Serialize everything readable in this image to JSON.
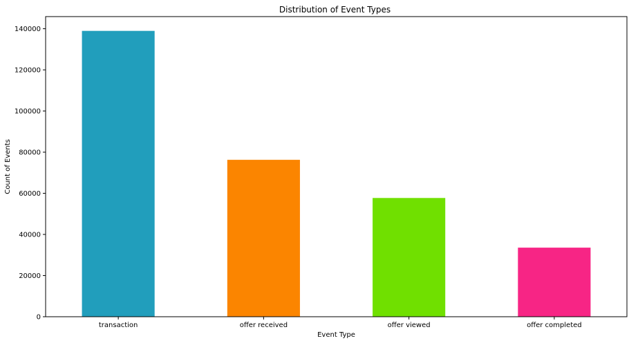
{
  "chart_data": {
    "type": "bar",
    "title": "Distribution of Event Types",
    "xlabel": "Event Type",
    "ylabel": "Count of Events",
    "categories": [
      "transaction",
      "offer received",
      "offer viewed",
      "offer completed"
    ],
    "values": [
      138953,
      76277,
      57725,
      33579
    ],
    "colors": [
      "#219ebc",
      "#fb8500",
      "#70e000",
      "#f72585"
    ],
    "ylim": [
      0,
      145898
    ],
    "yticks": [
      0,
      20000,
      40000,
      60000,
      80000,
      100000,
      120000,
      140000
    ],
    "grid": false,
    "legend": "none"
  }
}
